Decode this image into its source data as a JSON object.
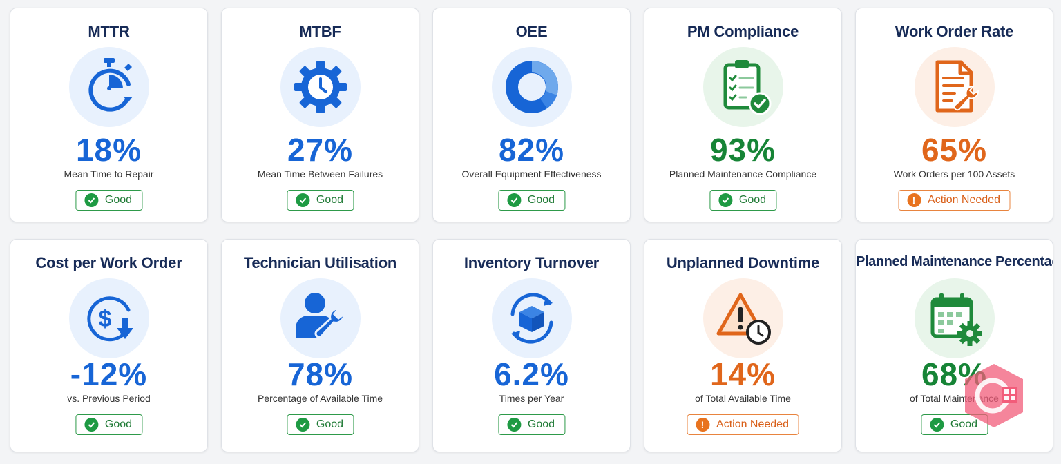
{
  "colors": {
    "blue": "#1765d6",
    "green": "#168436",
    "orange": "#e0661b",
    "title": "#172b57"
  },
  "cards": [
    {
      "title": "MTTR",
      "icon": "stopwatch-icon",
      "value": "18%",
      "value_color": "blue",
      "description": "Mean Time to Repair",
      "status": "Good",
      "status_type": "good"
    },
    {
      "title": "MTBF",
      "icon": "gear-clock-icon",
      "value": "27%",
      "value_color": "blue",
      "description": "Mean Time Between Failures",
      "status": "Good",
      "status_type": "good"
    },
    {
      "title": "OEE",
      "icon": "donut-chart-icon",
      "value": "82%",
      "value_color": "blue",
      "description": "Overall Equipment Effectiveness",
      "status": "Good",
      "status_type": "good"
    },
    {
      "title": "PM Compliance",
      "icon": "clipboard-check-icon",
      "value": "93%",
      "value_color": "green",
      "description": "Planned Maintenance Compliance",
      "status": "Good",
      "status_type": "good"
    },
    {
      "title": "Work Order Rate",
      "icon": "document-wrench-icon",
      "value": "65%",
      "value_color": "orange",
      "description": "Work Orders per 100 Assets",
      "status": "Action Needed",
      "status_type": "warn"
    },
    {
      "title": "Cost per Work Order",
      "icon": "dollar-down-icon",
      "value": "-12%",
      "value_color": "blue",
      "description": "vs. Previous Period",
      "status": "Good",
      "status_type": "good"
    },
    {
      "title": "Technician Utilisation",
      "icon": "technician-wrench-icon",
      "value": "78%",
      "value_color": "blue",
      "description": "Percentage of Available Time",
      "status": "Good",
      "status_type": "good"
    },
    {
      "title": "Inventory Turnover",
      "icon": "box-cycle-icon",
      "value": "6.2%",
      "value_color": "blue",
      "description": "Times per Year",
      "status": "Good",
      "status_type": "good"
    },
    {
      "title": "Unplanned Downtime",
      "icon": "warning-clock-icon",
      "value": "14%",
      "value_color": "orange",
      "description": "of Total Available Time",
      "status": "Action Needed",
      "status_type": "warn"
    },
    {
      "title": "Planned Maintenance Percentage",
      "icon": "calendar-gear-icon",
      "value": "68%",
      "value_color": "green",
      "description": "of Total Maintenance",
      "status": "Good",
      "status_type": "good"
    }
  ]
}
